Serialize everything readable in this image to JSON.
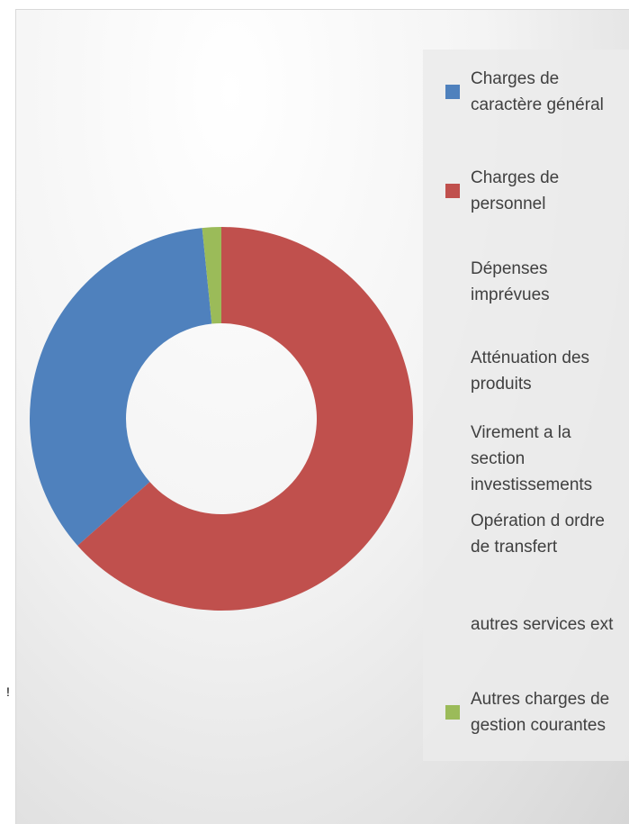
{
  "chart_data": {
    "type": "donut",
    "categories": [
      "Charges de caractère général",
      "Charges de personnel",
      "Dépenses imprévues",
      "Atténuation des produits",
      "Virement a la section investissements",
      "Opération d ordre de transfert",
      "autres services ext",
      "Autres charges de gestion courantes"
    ],
    "values": [
      34.9,
      63.5,
      0,
      0,
      0,
      0,
      0,
      1.6
    ],
    "colors": [
      "#4f81bd",
      "#c0504d",
      null,
      null,
      null,
      null,
      null,
      "#9bbb59"
    ],
    "annotation": "!"
  }
}
